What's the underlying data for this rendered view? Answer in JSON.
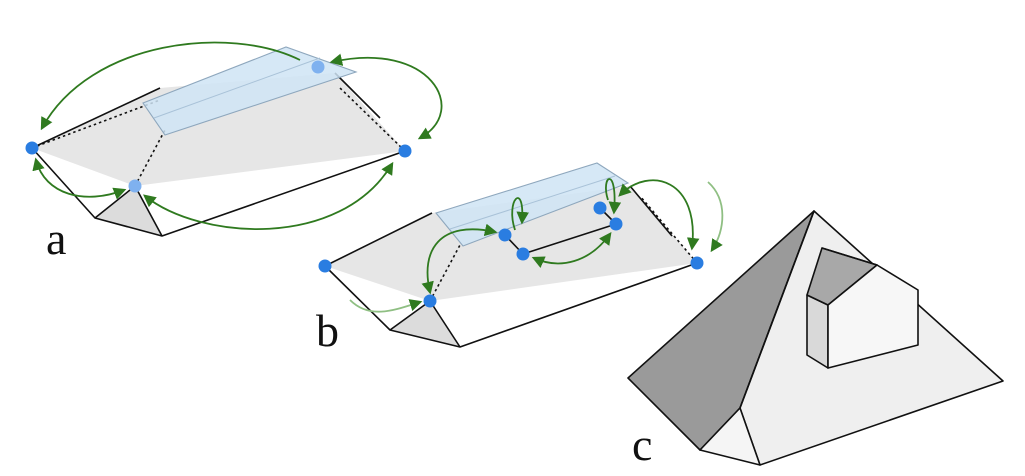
{
  "panels": {
    "a": {
      "label": "a"
    },
    "b": {
      "label": "b"
    },
    "c": {
      "label": "c"
    }
  },
  "colors": {
    "roof_face": "#e6e6e6",
    "plane": "#cfe4f5",
    "vertex": "#2a7de1",
    "vertex_faded": "#7fb1ef",
    "arrow": "#2f7a1f",
    "shade_dark": "#9a9a9a",
    "shade_light": "#f2f2f2"
  }
}
